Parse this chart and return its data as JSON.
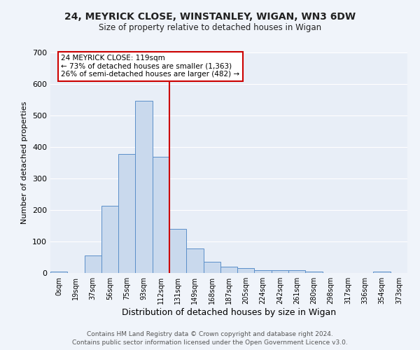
{
  "title": "24, MEYRICK CLOSE, WINSTANLEY, WIGAN, WN3 6DW",
  "subtitle": "Size of property relative to detached houses in Wigan",
  "xlabel": "Distribution of detached houses by size in Wigan",
  "ylabel": "Number of detached properties",
  "bin_labels": [
    "0sqm",
    "19sqm",
    "37sqm",
    "56sqm",
    "75sqm",
    "93sqm",
    "112sqm",
    "131sqm",
    "149sqm",
    "168sqm",
    "187sqm",
    "205sqm",
    "224sqm",
    "242sqm",
    "261sqm",
    "280sqm",
    "298sqm",
    "317sqm",
    "336sqm",
    "354sqm",
    "373sqm"
  ],
  "bar_heights": [
    5,
    0,
    55,
    213,
    378,
    547,
    370,
    140,
    77,
    35,
    20,
    15,
    9,
    9,
    8,
    5,
    0,
    0,
    0,
    5,
    0
  ],
  "bar_color": "#c9d9ed",
  "bar_edge_color": "#5b8fc9",
  "vline_x": 6.5,
  "vline_color": "#cc0000",
  "annotation_title": "24 MEYRICK CLOSE: 119sqm",
  "annotation_line1": "← 73% of detached houses are smaller (1,363)",
  "annotation_line2": "26% of semi-detached houses are larger (482) →",
  "annotation_box_color": "#ffffff",
  "annotation_box_edge_color": "#cc0000",
  "ylim": [
    0,
    700
  ],
  "yticks": [
    0,
    100,
    200,
    300,
    400,
    500,
    600,
    700
  ],
  "fig_bg_color": "#f0f4fa",
  "ax_bg_color": "#e8eef7",
  "footer1": "Contains HM Land Registry data © Crown copyright and database right 2024.",
  "footer2": "Contains public sector information licensed under the Open Government Licence v3.0.",
  "grid_color": "#ffffff"
}
